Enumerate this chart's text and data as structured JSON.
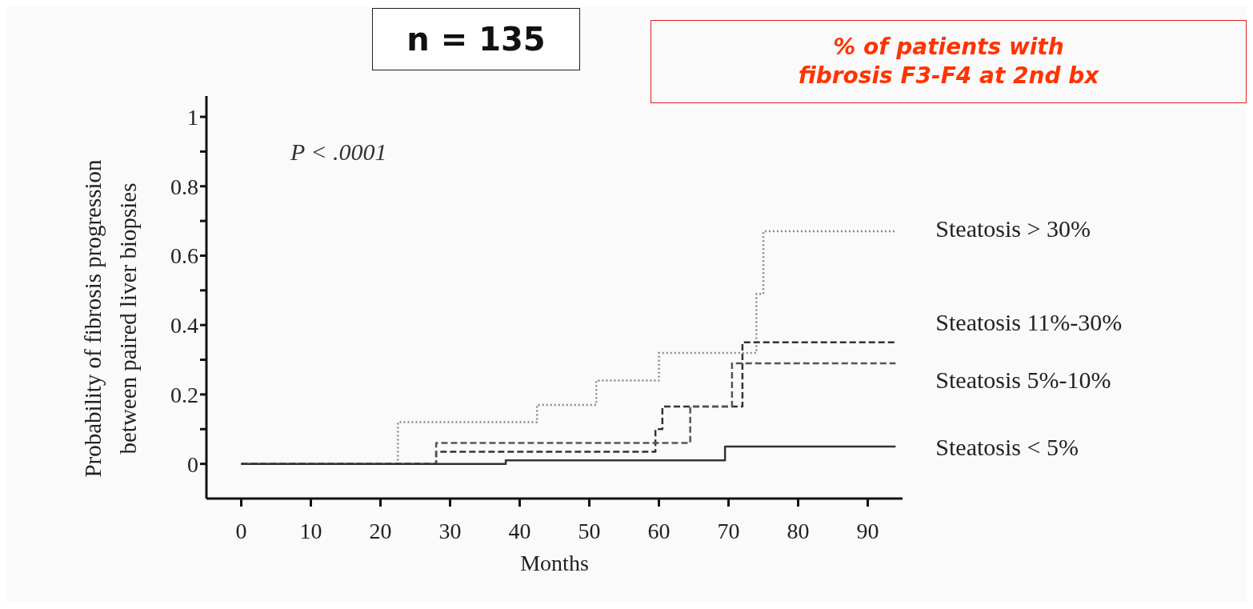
{
  "chart_data": {
    "type": "step",
    "title": "% of patients with fibrosis F3-F4 at 2nd bx",
    "xlabel": "Months",
    "ylabel": "Probability of fibrosis progression\nbetween paired liver biopsies",
    "annotations": [
      "n = 135",
      "P < .0001"
    ],
    "series": [
      {
        "name": "Steatosis > 30%",
        "color": "#8a8a8a",
        "line_style": "dotted",
        "x": [
          0,
          22.5,
          42.5,
          51,
          60,
          74,
          75,
          94
        ],
        "values": [
          0,
          0.12,
          0.17,
          0.24,
          0.32,
          0.49,
          0.67,
          0.67
        ]
      },
      {
        "name": "Steatosis 11%-30%",
        "color": "#333333",
        "line_style": "dashed",
        "x": [
          0,
          28,
          59.5,
          60.5,
          72,
          94
        ],
        "values": [
          0,
          0.035,
          0.1,
          0.165,
          0.35,
          0.35
        ]
      },
      {
        "name": "Steatosis 5%-10%",
        "color": "#555555",
        "line_style": "dashed",
        "x": [
          0,
          28,
          64.5,
          70.5,
          94
        ],
        "values": [
          0,
          0.06,
          0.165,
          0.29,
          0.29
        ]
      },
      {
        "name": "Steatosis < 5%",
        "color": "#333333",
        "line_style": "solid",
        "x": [
          0,
          38,
          69.5,
          94
        ],
        "values": [
          0,
          0.01,
          0.05,
          0.05
        ]
      }
    ],
    "xlim": [
      -5,
      95
    ],
    "xticks": [
      0,
      10,
      20,
      30,
      40,
      50,
      60,
      70,
      80,
      90
    ],
    "ylim": [
      -0.1,
      1.06
    ],
    "yticks": [
      0,
      {
        "value": 0.1,
        "label": null
      },
      0.2,
      {
        "value": 0.3,
        "label": null
      },
      0.4,
      {
        "value": 0.5,
        "label": null
      },
      0.6,
      {
        "value": 0.7,
        "label": null
      },
      0.8,
      {
        "value": 0.9,
        "label": null
      },
      1
    ],
    "legend": false
  }
}
